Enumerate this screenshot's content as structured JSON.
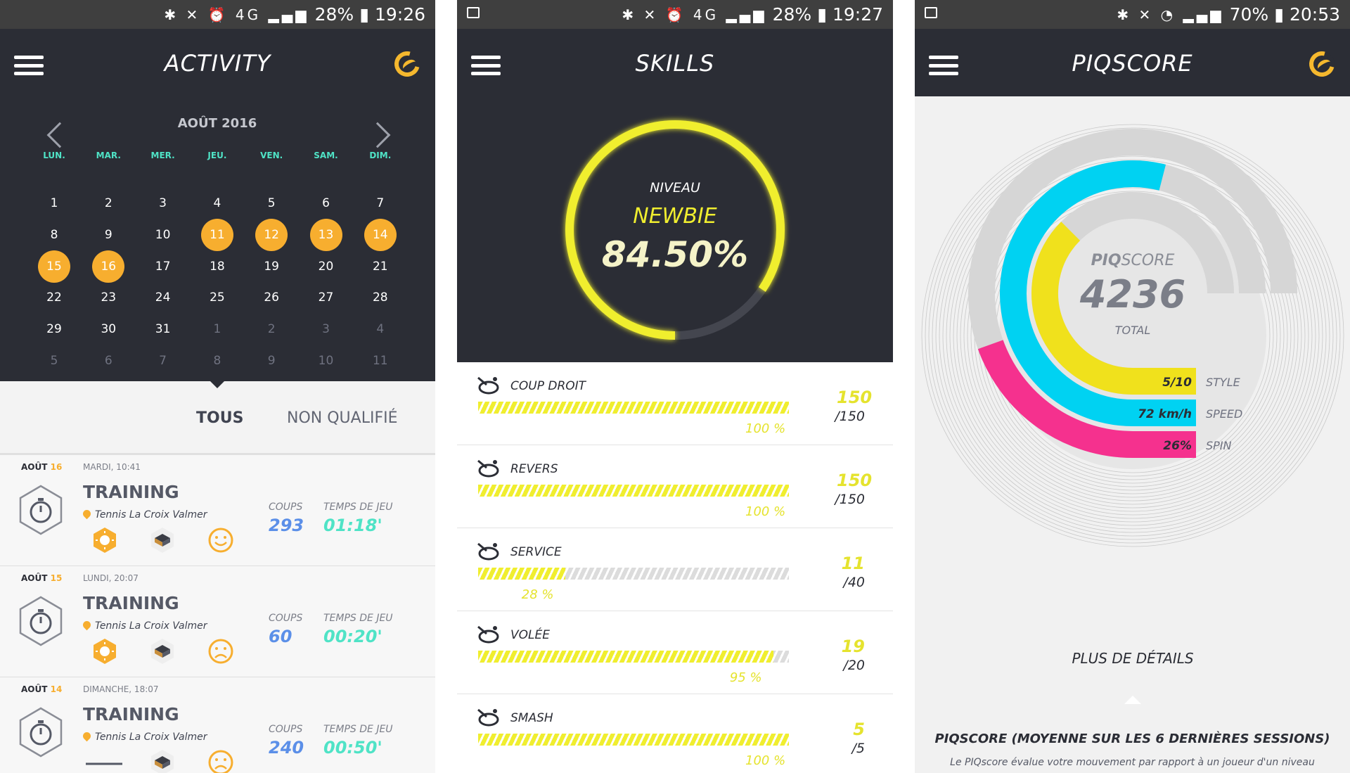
{
  "colors": {
    "accent_orange": "#f7ae2f",
    "accent_yellow": "#f0ee2f",
    "teal": "#4fe3c6",
    "blue": "#5b8fe8",
    "cyan": "#00d2f2",
    "magenta": "#f5318e",
    "dark": "#2b2d35"
  },
  "screens": {
    "activity": {
      "status": {
        "battery": "28%",
        "time": "19:26"
      },
      "title": "ACTIVITY",
      "calendar": {
        "month": "AOÛT 2016",
        "weekdays": [
          "LUN.",
          "MAR.",
          "MER.",
          "JEU.",
          "VEN.",
          "SAM.",
          "DIM."
        ],
        "weeks": [
          [
            "1",
            "2",
            "3",
            "4",
            "5",
            "6",
            "7"
          ],
          [
            "8",
            "9",
            "10",
            "11",
            "12",
            "13",
            "14"
          ],
          [
            "15",
            "16",
            "17",
            "18",
            "19",
            "20",
            "21"
          ],
          [
            "22",
            "23",
            "24",
            "25",
            "26",
            "27",
            "28"
          ],
          [
            "29",
            "30",
            "31",
            "1",
            "2",
            "3",
            "4"
          ],
          [
            "5",
            "6",
            "7",
            "8",
            "9",
            "10",
            "11"
          ]
        ],
        "highlighted": [
          "11",
          "12",
          "13",
          "14",
          "15",
          "16"
        ]
      },
      "filters": {
        "all": "TOUS",
        "unqualified": "NON QUALIFIÉ"
      },
      "sessions": [
        {
          "month": "AOÛT",
          "day": "16",
          "when": "MARDI, 10:41",
          "type": "TRAINING",
          "place": "Tennis La Croix Valmer",
          "coups_label": "COUPS",
          "coups": "293",
          "temps_label": "TEMPS DE JEU",
          "temps": "01:18'",
          "mood": "happy",
          "weather": "sun"
        },
        {
          "month": "AOÛT",
          "day": "15",
          "when": "LUNDI, 20:07",
          "type": "TRAINING",
          "place": "Tennis La Croix Valmer",
          "coups_label": "COUPS",
          "coups": "60",
          "temps_label": "TEMPS DE JEU",
          "temps": "00:20'",
          "mood": "sad",
          "weather": "sun"
        },
        {
          "month": "AOÛT",
          "day": "14",
          "when": "DIMANCHE, 18:07",
          "type": "TRAINING",
          "place": "Tennis La Croix Valmer",
          "coups_label": "COUPS",
          "coups": "240",
          "temps_label": "TEMPS DE JEU",
          "temps": "00:50'",
          "mood": "sad",
          "weather": "none"
        }
      ]
    },
    "skills": {
      "status": {
        "battery": "28%",
        "time": "19:27"
      },
      "title": "SKILLS",
      "gauge": {
        "niveau_label": "NIVEAU",
        "level": "NEWBIE",
        "percent": "84.50%",
        "progress": 0.845
      },
      "items": [
        {
          "name": "COUP DROIT",
          "score": "150",
          "total": "/150",
          "pct_label": "100 %",
          "fill": 1.0,
          "icon": "forehand-icon"
        },
        {
          "name": "REVERS",
          "score": "150",
          "total": "/150",
          "pct_label": "100 %",
          "fill": 1.0,
          "icon": "backhand-icon"
        },
        {
          "name": "SERVICE",
          "score": "11",
          "total": "/40",
          "pct_label": "28 %",
          "fill": 0.28,
          "icon": "serve-icon"
        },
        {
          "name": "VOLÉE",
          "score": "19",
          "total": "/20",
          "pct_label": "95 %",
          "fill": 0.95,
          "icon": "volley-icon"
        },
        {
          "name": "SMASH",
          "score": "5",
          "total": "/5",
          "pct_label": "100 %",
          "fill": 1.0,
          "icon": "smash-icon"
        }
      ]
    },
    "piqscore": {
      "status": {
        "battery": "70%",
        "time": "20:53"
      },
      "title": "PIQSCORE",
      "brand_bold": "PIQ",
      "brand_rest": "SCORE",
      "score": "4236",
      "total_label": "TOTAL",
      "metrics": [
        {
          "value": "5/10",
          "label": "STYLE",
          "color": "#f0e11c",
          "fraction": 0.5
        },
        {
          "value": "72 km/h",
          "label": "SPEED",
          "color": "#00d2f2",
          "fraction": 0.72
        },
        {
          "value": "26%",
          "label": "SPIN",
          "color": "#f5318e",
          "fraction": 0.26
        }
      ],
      "details_button": "PLUS DE DÉTAILS",
      "footer_title": "PIQSCORE (MOYENNE SUR LES 6 DERNIÈRES SESSIONS)",
      "footer_text": "Le PIQscore évalue votre mouvement par rapport à un joueur d'un niveau"
    }
  }
}
